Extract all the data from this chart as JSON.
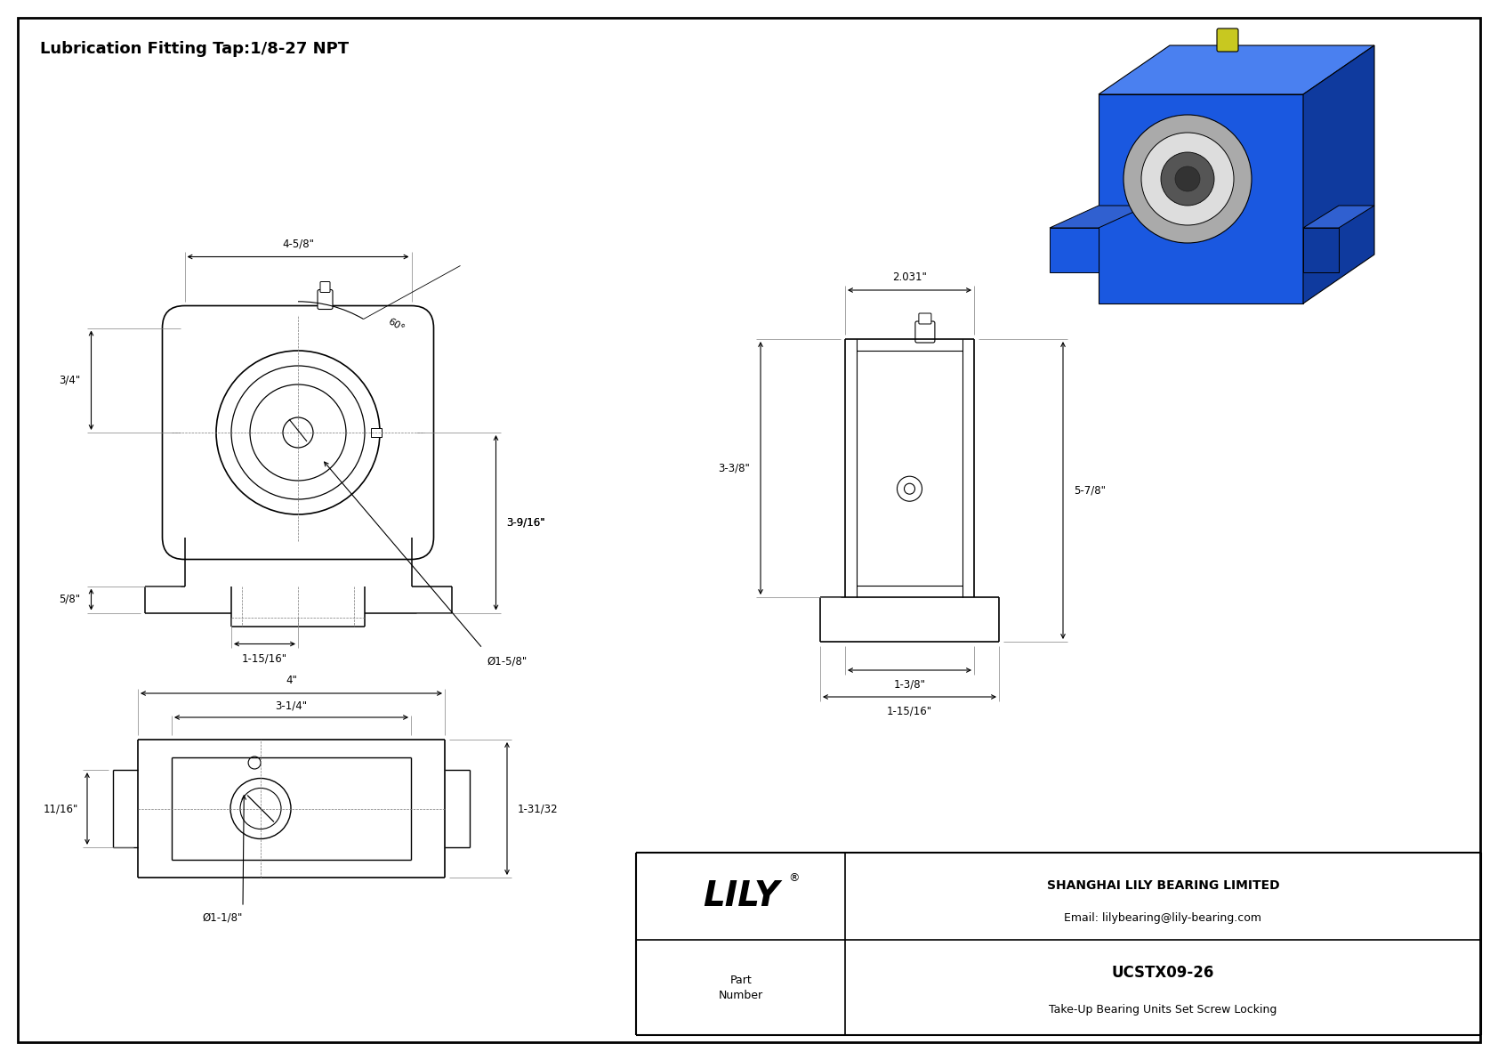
{
  "title": "Lubrication Fitting Tap:1/8-27 NPT",
  "company": "SHANGHAI LILY BEARING LIMITED",
  "email": "Email: lilybearing@lily-bearing.com",
  "part_number": "UCSTX09-26",
  "part_desc": "Take-Up Bearing Units Set Screw Locking",
  "dims_front": {
    "width_top": "4-5/8\"",
    "height_right": "3-9/16\"",
    "height_left": "3/4\"",
    "height_bottom_left": "5/8\"",
    "width_bottom": "1-15/16\"",
    "bore": "Ø1-5/8\"",
    "angle": "60°"
  },
  "dims_side": {
    "width_top": "2.031\"",
    "height_upper": "3-3/8\"",
    "height_total": "5-7/8\"",
    "width_bottom1": "1-3/8\"",
    "width_bottom2": "1-15/16\""
  },
  "dims_bottom": {
    "width_outer": "4\"",
    "width_inner": "3-1/4\"",
    "height_right": "1-31/32",
    "height_left": "11/16\"",
    "bore": "Ø1-1/8\""
  }
}
